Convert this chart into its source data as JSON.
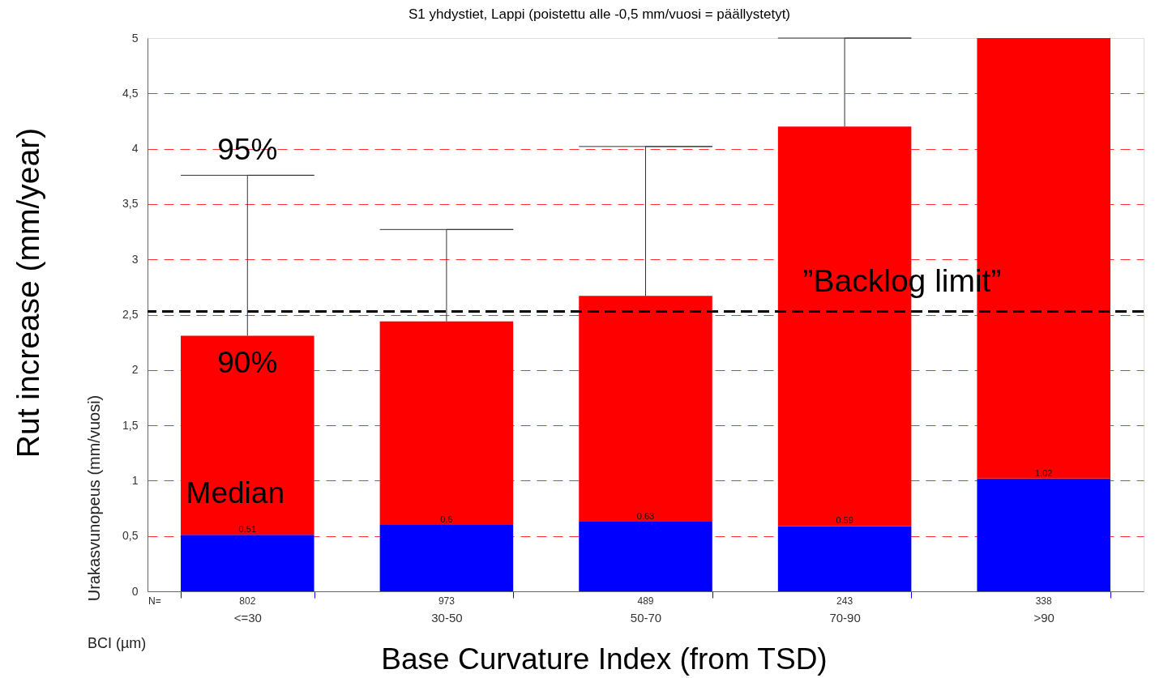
{
  "chart_data": {
    "type": "bar",
    "stacked": true,
    "title": "S1 yhdystiet, Lappi (poistettu alle -0,5 mm/vuosi = päällystetyt)",
    "xlabel": "Base Curvature Index (from TSD)",
    "ylabel": "Rut increase (mm/year)",
    "categories": [
      "<=30",
      "30-50",
      "50-70",
      "70-90",
      ">90"
    ],
    "series": [
      {
        "color": "#0000ff",
        "values": [
          0.51,
          0.6,
          0.63,
          0.59,
          1.02
        ],
        "value_labels": [
          "0.51",
          "0.6",
          "0.63",
          "0.59",
          "1.02"
        ]
      },
      {
        "color": "#ff0000",
        "values": [
          1.8,
          1.84,
          2.04,
          3.61,
          3.98
        ],
        "errors": [
          [
            2.31,
            3.76
          ],
          [
            2.44,
            3.27
          ],
          [
            2.67,
            4.02
          ],
          [
            4.2,
            5
          ],
          null
        ]
      }
    ],
    "ylim": [
      0,
      5
    ],
    "yticks": [
      0,
      {
        "value": 0.5,
        "label": "0,5"
      },
      1,
      {
        "value": 1.5,
        "label": "1,5"
      },
      2,
      {
        "value": 2.5,
        "label": "2,5"
      },
      3,
      {
        "value": 3.5,
        "label": "3,5"
      },
      4,
      {
        "value": 4.5,
        "label": "4,5"
      },
      5
    ],
    "grid": "y",
    "ref_lines": [
      {
        "axis": "y",
        "value": 2.53,
        "label": "”Backlog limit”",
        "color": "#000000",
        "line_style": "dashed"
      }
    ],
    "annotations": [
      {
        "text": "95%",
        "x": "<=30",
        "y": 3.76
      },
      {
        "text": "90%",
        "x": "<=30",
        "y": 2.31
      },
      {
        "text": "Median",
        "x": "<=30",
        "y": 0.51
      },
      "N=",
      "802",
      "973",
      "489",
      "243",
      "338",
      "Urakasvunopeus (mm/vuosi)",
      "BCI (µm)"
    ]
  }
}
